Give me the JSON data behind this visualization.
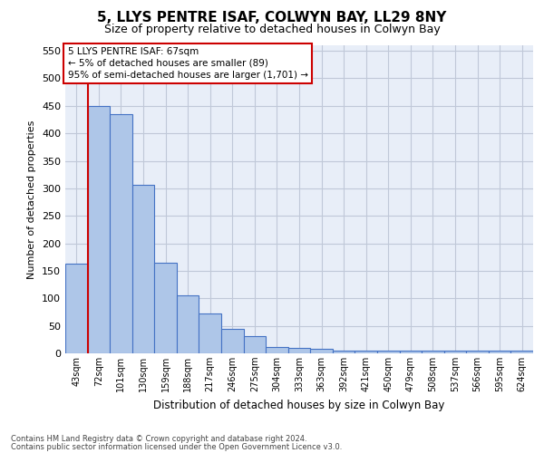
{
  "title": "5, LLYS PENTRE ISAF, COLWYN BAY, LL29 8NY",
  "subtitle": "Size of property relative to detached houses in Colwyn Bay",
  "xlabel": "Distribution of detached houses by size in Colwyn Bay",
  "ylabel": "Number of detached properties",
  "footer_line1": "Contains HM Land Registry data © Crown copyright and database right 2024.",
  "footer_line2": "Contains public sector information licensed under the Open Government Licence v3.0.",
  "categories": [
    "43sqm",
    "72sqm",
    "101sqm",
    "130sqm",
    "159sqm",
    "188sqm",
    "217sqm",
    "246sqm",
    "275sqm",
    "304sqm",
    "333sqm",
    "363sqm",
    "392sqm",
    "421sqm",
    "450sqm",
    "479sqm",
    "508sqm",
    "537sqm",
    "566sqm",
    "595sqm",
    "624sqm"
  ],
  "values": [
    163,
    450,
    435,
    307,
    165,
    105,
    73,
    44,
    32,
    11,
    10,
    8,
    5,
    5,
    5,
    5,
    5,
    5,
    5,
    5,
    5
  ],
  "bar_color": "#aec6e8",
  "bar_edge_color": "#4472c4",
  "vline_color": "#cc0000",
  "ylim": [
    0,
    560
  ],
  "yticks": [
    0,
    50,
    100,
    150,
    200,
    250,
    300,
    350,
    400,
    450,
    500,
    550
  ],
  "annotation_text": "5 LLYS PENTRE ISAF: 67sqm\n← 5% of detached houses are smaller (89)\n95% of semi-detached houses are larger (1,701) →",
  "annotation_box_color": "#cc0000",
  "background_color": "#e8eef8",
  "grid_color": "#c0c8d8",
  "title_fontsize": 11,
  "subtitle_fontsize": 9
}
